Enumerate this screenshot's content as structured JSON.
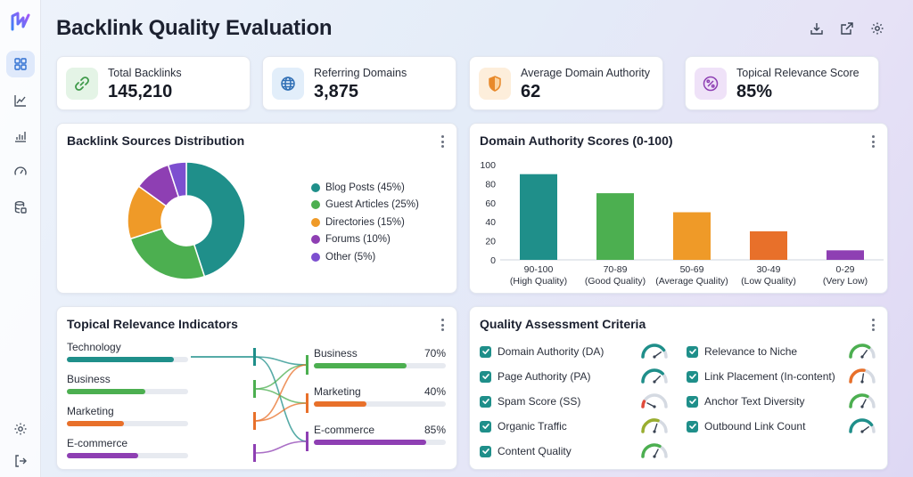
{
  "title": "Backlink Quality Evaluation",
  "colors": {
    "teal": "#1f8f8a",
    "green": "#4caf50",
    "orange": "#ef9a28",
    "purple": "#8e3fb3",
    "violet": "#7d4fd0",
    "deep_orange": "#e8702a",
    "red": "#e14b3b",
    "olive": "#9aae2f"
  },
  "stats": [
    {
      "label": "Total Backlinks",
      "value": "145,210",
      "icon": "link-icon"
    },
    {
      "label": "Referring Domains",
      "value": "3,875",
      "icon": "globe-icon"
    },
    {
      "label": "Average Domain Authority",
      "value": "62",
      "icon": "shield-icon"
    },
    {
      "label": "Topical Relevance Score",
      "value": "85%",
      "icon": "percent-icon"
    }
  ],
  "sources": {
    "title": "Backlink Sources Distribution",
    "legend": [
      {
        "label": "Blog Posts (45%)",
        "value": 45,
        "color": "#1f8f8a"
      },
      {
        "label": "Guest Articles (25%)",
        "value": 25,
        "color": "#4caf50"
      },
      {
        "label": "Directories (15%)",
        "value": 15,
        "color": "#ef9a28"
      },
      {
        "label": "Forums (10%)",
        "value": 10,
        "color": "#8e3fb3"
      },
      {
        "label": "Other (5%)",
        "value": 5,
        "color": "#7d4fd0"
      }
    ]
  },
  "chart_data": {
    "type": "bar",
    "title": "Domain Authority Scores (0-100)",
    "categories": [
      [
        "90-100",
        "(High Quality)"
      ],
      [
        "70-89",
        "(Good Quality)"
      ],
      [
        "50-69",
        "(Average Quality)"
      ],
      [
        "30-49",
        "(Low Quality)"
      ],
      [
        "0-29",
        "(Very Low)"
      ]
    ],
    "values": [
      90,
      70,
      50,
      30,
      10
    ],
    "colors": [
      "#1f8f8a",
      "#4caf50",
      "#ef9a28",
      "#e8702a",
      "#8e3fb3"
    ],
    "ylim": [
      0,
      100
    ],
    "yticks": [
      100,
      80,
      60,
      40,
      20,
      0
    ],
    "grid": false
  },
  "topical": {
    "title": "Topical Relevance Indicators",
    "left": [
      {
        "label": "Technology",
        "value": 0.88,
        "color": "#1f8f8a"
      },
      {
        "label": "Business",
        "value": 0.65,
        "color": "#4caf50"
      },
      {
        "label": "Marketing",
        "value": 0.47,
        "color": "#e8702a"
      },
      {
        "label": "E-commerce",
        "value": 0.59,
        "color": "#8e3fb3"
      }
    ],
    "right": [
      {
        "label": "Business",
        "pct": "70%",
        "value": 0.7,
        "color": "#4caf50"
      },
      {
        "label": "Marketing",
        "pct": "40%",
        "value": 0.4,
        "color": "#e8702a"
      },
      {
        "label": "E-commerce",
        "pct": "85%",
        "value": 0.85,
        "color": "#8e3fb3"
      }
    ]
  },
  "criteria": {
    "title": "Quality Assessment Criteria",
    "left": [
      {
        "label": "Domain Authority (DA)",
        "level": 0.8,
        "color": "#1f8f8a"
      },
      {
        "label": "Page Authority (PA)",
        "level": 0.75,
        "color": "#1f8f8a"
      },
      {
        "label": "Spam Score (SS)",
        "level": 0.15,
        "color": "#e14b3b"
      },
      {
        "label": "Organic Traffic",
        "level": 0.6,
        "color": "#9aae2f"
      },
      {
        "label": "Content Quality",
        "level": 0.65,
        "color": "#4caf50"
      }
    ],
    "right": [
      {
        "label": "Relevance to Niche",
        "level": 0.7,
        "color": "#4caf50"
      },
      {
        "label": "Link Placement (In-content)",
        "level": 0.55,
        "color": "#e8702a"
      },
      {
        "label": "Anchor Text Diversity",
        "level": 0.65,
        "color": "#4caf50"
      },
      {
        "label": "Outbound Link Count",
        "level": 0.8,
        "color": "#1f8f8a"
      }
    ]
  },
  "nav": [
    "dashboard-icon",
    "trend-icon",
    "bar-chart-icon",
    "speedometer-icon",
    "database-icon",
    "settings-icon",
    "logout-icon"
  ],
  "actions": [
    "download-icon",
    "external-link-icon",
    "gear-icon"
  ]
}
